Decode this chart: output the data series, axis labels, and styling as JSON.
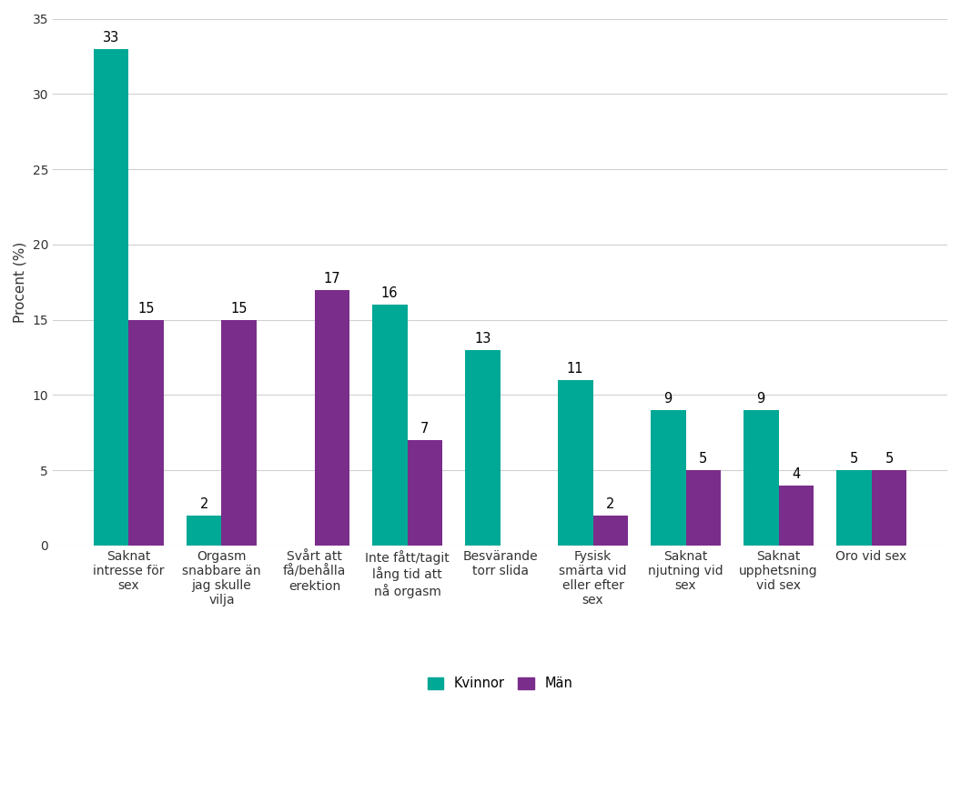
{
  "categories": [
    "Saknat\nintresse för\nsex",
    "Orgasm\nsnabbare än\njag skulle\nvilja",
    "Svårt att\nfå/behålla\nerektion",
    "Inte fått/tagit\nlång tid att\nnå orgasm",
    "Besvärande\ntorr slida",
    "Fysisk\nsmärta vid\neller efter\nsex",
    "Saknat\nnjutning vid\nsex",
    "Saknat\nupphetsning\nvid sex",
    "Oro vid sex"
  ],
  "kvinnor_values": [
    33,
    2,
    0,
    16,
    13,
    11,
    9,
    9,
    5
  ],
  "man_values": [
    15,
    15,
    17,
    7,
    0,
    2,
    5,
    4,
    5
  ],
  "kvinnor_color": "#00A896",
  "man_color": "#7B2D8B",
  "ylabel": "Procent (%)",
  "ylim": [
    0,
    35
  ],
  "yticks": [
    0,
    5,
    10,
    15,
    20,
    25,
    30,
    35
  ],
  "legend_kvinnor": "Kvinnor",
  "legend_man": "Män",
  "bar_width": 0.38,
  "background_color": "#ffffff",
  "grid_color": "#d0d0d0",
  "label_fontsize": 10.5,
  "tick_fontsize": 10,
  "ylabel_fontsize": 11
}
